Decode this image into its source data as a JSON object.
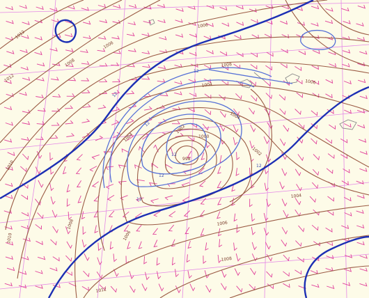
{
  "map": {
    "colors": {
      "background": "#fdfbe8",
      "grid": "#e27be6",
      "isobar": "#9b5a44",
      "thickness_light": "#5670d6",
      "thickness_heavy": "#1c2fb4",
      "wind_barb": "#e0409a",
      "coastline": "#8a8a8a"
    },
    "isobar_labels": [
      "1012",
      "1012",
      "1010",
      "1008",
      "1006",
      "1004",
      "1002",
      "1000",
      "998",
      "1006",
      "1004",
      "1008",
      "1006",
      "1004",
      "1002",
      "1010",
      "1008",
      "1006",
      "1006",
      "1004",
      "1008",
      "1012"
    ],
    "thickness_labels": [
      "12",
      "12",
      "12",
      "12",
      "12",
      "12",
      "12"
    ]
  }
}
